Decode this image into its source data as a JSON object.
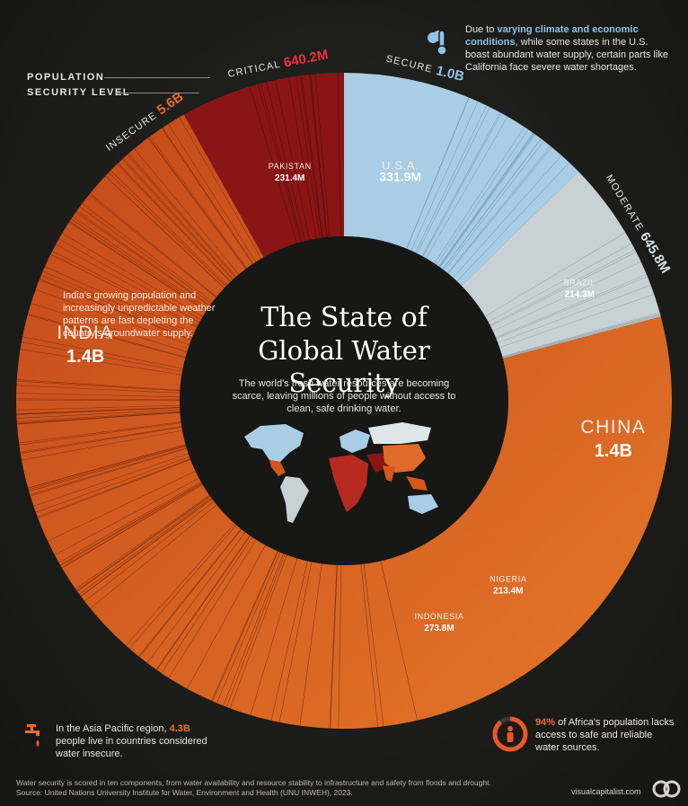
{
  "header": {
    "legend_population": "POPULATION",
    "legend_security": "SECURITY LEVEL"
  },
  "notes": {
    "usa_note_pre": "Due to ",
    "usa_note_highlight": "varying climate and economic conditions",
    "usa_note_post": ", while some states in the U.S. boast abundant water supply, certain parts like California face severe water shortages.",
    "india_note": "India's growing population and increasingly unpredictable weather patterns are fast depleting the country's groundwater supply.",
    "asia_note_pre": "In the Asia Pacific region, ",
    "asia_note_highlight": "4.3B",
    "asia_note_post": " people live in countries considered water insecure.",
    "africa_note_highlight": "94%",
    "africa_note_post": " of Africa's population lacks access to safe and reliable water sources."
  },
  "center": {
    "title_line1": "The State of",
    "title_line2": "Global Water Security",
    "subtitle": "The world's fresh water resources are becoming scarce, leaving millions of people without access to clean, safe drinking water."
  },
  "footer": {
    "source": "Water security is scored in ten components, from water availability and resource stability to infrastructure and safety from floods and drought. Source: United Nations University Institute for Water, Environment and Health (UNU INWEH), 2023.",
    "brand": "visualcapitalist.com"
  },
  "icons": {
    "thermometer": "thermometer-cloud-icon",
    "faucet": "faucet-drop-icon",
    "person": "person-ring-icon",
    "brand_logo": "visual-capitalist-logo"
  },
  "colors": {
    "secure": "#a9cde4",
    "moderate": "#c8d2d4",
    "insecure": "#d2561e",
    "critical": "#8a1515",
    "secure_label": "#8fc3e6",
    "moderate_label": "#d8e0e2",
    "insecure_label": "#ef6a2a",
    "critical_label": "#e8323a"
  },
  "chart_data": {
    "type": "donut",
    "title": "The State of Global Water Security",
    "groups": [
      {
        "level": "SECURE",
        "population": "1.0B",
        "population_value": 1.0,
        "color": "#a9cde4"
      },
      {
        "level": "MODERATE",
        "population": "645.8M",
        "population_value": 0.6458,
        "color": "#c8d2d4"
      },
      {
        "level": "INSECURE",
        "population": "5.6B",
        "population_value": 5.6,
        "color": "#d2561e"
      },
      {
        "level": "CRITICAL",
        "population": "640.2M",
        "population_value": 0.6402,
        "color": "#8a1515"
      }
    ],
    "countries": [
      {
        "name": "U.S.A.",
        "population": "331.9M",
        "value": 331.9,
        "level": "SECURE"
      },
      {
        "name": "BRAZIL",
        "population": "214.3M",
        "value": 214.3,
        "level": "MODERATE"
      },
      {
        "name": "CHINA",
        "population": "1.4B",
        "value": 1400,
        "level": "INSECURE"
      },
      {
        "name": "NIGERIA",
        "population": "213.4M",
        "value": 213.4,
        "level": "INSECURE"
      },
      {
        "name": "INDONESIA",
        "population": "273.8M",
        "value": 273.8,
        "level": "INSECURE"
      },
      {
        "name": "INDIA",
        "population": "1.4B",
        "value": 1400,
        "level": "INSECURE"
      },
      {
        "name": "PAKISTAN",
        "population": "231.4M",
        "value": 231.4,
        "level": "CRITICAL"
      }
    ]
  }
}
